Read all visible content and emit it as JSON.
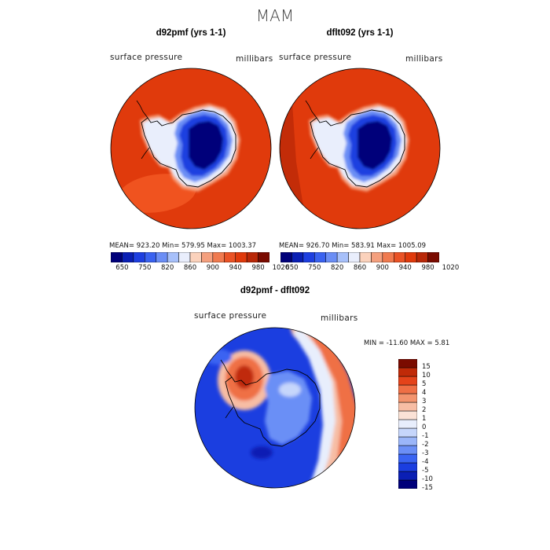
{
  "figure": {
    "season": "MAM"
  },
  "colors": {
    "abs_scale": [
      "#00007a",
      "#0a1fb4",
      "#1e3fe0",
      "#3a62f0",
      "#6b8ef5",
      "#a7c0fa",
      "#e9eefc",
      "#fbd2bc",
      "#f5a07e",
      "#f07a4f",
      "#ea5326",
      "#e03a0c",
      "#b92808",
      "#7a0b00"
    ],
    "diff_scale": [
      "#00007a",
      "#0a1fb4",
      "#1b3ee0",
      "#3a64f2",
      "#6b8ff6",
      "#9bb6f9",
      "#c6d6fb",
      "#e8eefc",
      "#fbe2d6",
      "#f7bda4",
      "#f3946e",
      "#ef6f45",
      "#e4431a",
      "#c02a08",
      "#7a0b00"
    ]
  },
  "panels": [
    {
      "title": "d92pmf (yrs 1-1)",
      "left_label": "surface pressure",
      "right_label": "millibars",
      "stats": "MEAN= 923.20   Min= 579.95   Max= 1003.37",
      "ticks": [
        "650",
        "750",
        "820",
        "860",
        "900",
        "940",
        "980",
        "1020"
      ]
    },
    {
      "title": "dflt092 (yrs 1-1)",
      "left_label": "surface pressure",
      "right_label": "millibars",
      "stats": "MEAN= 926.70   Min= 583.91   Max= 1005.09",
      "ticks": [
        "650",
        "750",
        "820",
        "860",
        "900",
        "940",
        "980",
        "1020"
      ]
    }
  ],
  "diff_panel": {
    "title": "d92pmf - dflt092",
    "left_label": "surface pressure",
    "right_label": "millibars",
    "stats": "MIN = -11.60  MAX =   5.81",
    "ticks": [
      "15",
      "10",
      "5",
      "4",
      "3",
      "2",
      "1",
      "0",
      "-1",
      "-2",
      "-3",
      "-4",
      "-5",
      "-10",
      "-15"
    ]
  },
  "chart_data": [
    {
      "type": "heatmap",
      "title": "d92pmf (yrs 1-1)",
      "variable": "surface pressure",
      "units": "millibars",
      "mean": 923.2,
      "min": 579.95,
      "max": 1003.37,
      "colorbar_levels": [
        650,
        750,
        820,
        860,
        900,
        940,
        980,
        1020
      ]
    },
    {
      "type": "heatmap",
      "title": "dflt092 (yrs 1-1)",
      "variable": "surface pressure",
      "units": "millibars",
      "mean": 926.7,
      "min": 583.91,
      "max": 1005.09,
      "colorbar_levels": [
        650,
        750,
        820,
        860,
        900,
        940,
        980,
        1020
      ]
    },
    {
      "type": "heatmap",
      "title": "d92pmf - dflt092",
      "variable": "surface pressure",
      "units": "millibars",
      "min": -11.6,
      "max": 5.81,
      "colorbar_levels": [
        15,
        10,
        5,
        4,
        3,
        2,
        1,
        0,
        -1,
        -2,
        -3,
        -4,
        -5,
        -10,
        -15
      ]
    }
  ]
}
